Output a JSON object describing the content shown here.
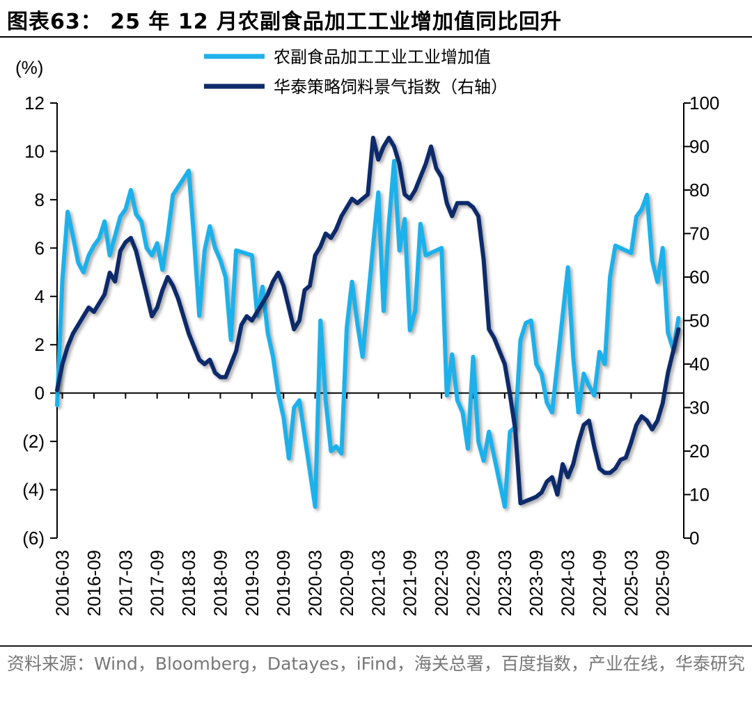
{
  "title": "图表63：  25 年 12 月农副食品加工工业增加值同比回升",
  "source": "资料来源：Wind，Bloomberg，Datayes，iFind，海关总署，百度指数，产业在线，华泰研究",
  "colors": {
    "series1": "#1fb1eb",
    "series2": "#0e2a6b",
    "axis": "#000000"
  },
  "chart_data": {
    "type": "line",
    "y_left_label": "(%)",
    "y_left_range": [
      -6,
      12
    ],
    "y_left_ticks": [
      "12",
      "10",
      "8",
      "6",
      "4",
      "2",
      "0",
      "(2)",
      "(4)",
      "(6)"
    ],
    "y_right_range": [
      0,
      100
    ],
    "y_right_ticks": [
      "100",
      "90",
      "80",
      "70",
      "60",
      "50",
      "40",
      "30",
      "20",
      "10",
      "0"
    ],
    "x_tick_labels": [
      "2016-03",
      "2016-09",
      "2017-03",
      "2017-09",
      "2018-03",
      "2018-09",
      "2019-03",
      "2019-09",
      "2020-03",
      "2020-09",
      "2021-03",
      "2021-09",
      "2022-03",
      "2022-09",
      "2023-03",
      "2023-09",
      "2024-03",
      "2024-09",
      "2025-03",
      "2025-09"
    ],
    "series": [
      {
        "name": "农副食品加工工业工业增加值",
        "axis": "left",
        "points": [
          [
            "2016-02",
            -0.5
          ],
          [
            "2016-03",
            4.7
          ],
          [
            "2016-04",
            7.5
          ],
          [
            "2016-05",
            6.5
          ],
          [
            "2016-06",
            5.4
          ],
          [
            "2016-07",
            5.0
          ],
          [
            "2016-08",
            5.7
          ],
          [
            "2016-09",
            6.1
          ],
          [
            "2016-10",
            6.4
          ],
          [
            "2016-11",
            7.1
          ],
          [
            "2016-12",
            5.7
          ],
          [
            "2017-02",
            7.3
          ],
          [
            "2017-03",
            7.6
          ],
          [
            "2017-04",
            8.4
          ],
          [
            "2017-05",
            7.4
          ],
          [
            "2017-06",
            7.1
          ],
          [
            "2017-07",
            6.0
          ],
          [
            "2017-08",
            5.7
          ],
          [
            "2017-09",
            6.2
          ],
          [
            "2017-10",
            5.1
          ],
          [
            "2017-11",
            6.5
          ],
          [
            "2017-12",
            8.2
          ],
          [
            "2018-03",
            9.2
          ],
          [
            "2018-04",
            6.4
          ],
          [
            "2018-05",
            3.2
          ],
          [
            "2018-06",
            5.9
          ],
          [
            "2018-07",
            6.9
          ],
          [
            "2018-08",
            6.0
          ],
          [
            "2018-09",
            5.5
          ],
          [
            "2018-10",
            4.8
          ],
          [
            "2018-11",
            2.2
          ],
          [
            "2018-12",
            5.9
          ],
          [
            "2019-03",
            5.7
          ],
          [
            "2019-04",
            3.2
          ],
          [
            "2019-05",
            4.4
          ],
          [
            "2019-06",
            2.5
          ],
          [
            "2019-07",
            1.5
          ],
          [
            "2019-08",
            0.0
          ],
          [
            "2019-09",
            -1.0
          ],
          [
            "2019-10",
            -2.7
          ],
          [
            "2019-11",
            -0.6
          ],
          [
            "2019-12",
            -0.3
          ],
          [
            "2020-03",
            -4.7
          ],
          [
            "2020-04",
            3.0
          ],
          [
            "2020-05",
            -0.3
          ],
          [
            "2020-06",
            -2.4
          ],
          [
            "2020-07",
            -2.2
          ],
          [
            "2020-08",
            -2.5
          ],
          [
            "2020-09",
            2.7
          ],
          [
            "2020-10",
            4.6
          ],
          [
            "2020-11",
            2.9
          ],
          [
            "2020-12",
            1.5
          ],
          [
            "2021-02",
            6.1
          ],
          [
            "2021-03",
            8.3
          ],
          [
            "2021-04",
            3.4
          ],
          [
            "2021-05",
            7.0
          ],
          [
            "2021-06",
            9.6
          ],
          [
            "2021-07",
            5.9
          ],
          [
            "2021-08",
            7.2
          ],
          [
            "2021-09",
            2.6
          ],
          [
            "2021-10",
            3.4
          ],
          [
            "2021-11",
            7.0
          ],
          [
            "2021-12",
            5.7
          ],
          [
            "2022-03",
            6.0
          ],
          [
            "2022-04",
            -0.1
          ],
          [
            "2022-05",
            1.6
          ],
          [
            "2022-06",
            -0.3
          ],
          [
            "2022-07",
            -0.8
          ],
          [
            "2022-08",
            -2.3
          ],
          [
            "2022-09",
            1.5
          ],
          [
            "2022-10",
            -2.0
          ],
          [
            "2022-11",
            -2.8
          ],
          [
            "2022-12",
            -1.6
          ],
          [
            "2023-03",
            -4.7
          ],
          [
            "2023-04",
            -1.6
          ],
          [
            "2023-05",
            -1.4
          ],
          [
            "2023-06",
            2.2
          ],
          [
            "2023-07",
            2.9
          ],
          [
            "2023-08",
            3.0
          ],
          [
            "2023-09",
            1.2
          ],
          [
            "2023-10",
            0.8
          ],
          [
            "2023-11",
            -0.4
          ],
          [
            "2023-12",
            -0.8
          ],
          [
            "2024-03",
            5.2
          ],
          [
            "2024-04",
            1.5
          ],
          [
            "2024-05",
            -0.8
          ],
          [
            "2024-06",
            0.8
          ],
          [
            "2024-07",
            0.3
          ],
          [
            "2024-08",
            -0.1
          ],
          [
            "2024-09",
            1.7
          ],
          [
            "2024-10",
            1.2
          ],
          [
            "2024-11",
            4.8
          ],
          [
            "2024-12",
            6.1
          ],
          [
            "2025-03",
            5.8
          ],
          [
            "2025-04",
            7.3
          ],
          [
            "2025-05",
            7.6
          ],
          [
            "2025-06",
            8.2
          ],
          [
            "2025-07",
            5.5
          ],
          [
            "2025-08",
            4.6
          ],
          [
            "2025-09",
            6.0
          ],
          [
            "2025-10",
            2.5
          ],
          [
            "2025-11",
            1.8
          ],
          [
            "2025-12",
            3.1
          ]
        ]
      },
      {
        "name": "华泰策略饲料景气指数（右轴）",
        "axis": "right",
        "points": [
          [
            "2016-02",
            34
          ],
          [
            "2016-03",
            40
          ],
          [
            "2016-04",
            44
          ],
          [
            "2016-05",
            47
          ],
          [
            "2016-06",
            49
          ],
          [
            "2016-07",
            51
          ],
          [
            "2016-08",
            53
          ],
          [
            "2016-09",
            52
          ],
          [
            "2016-10",
            54
          ],
          [
            "2016-11",
            56
          ],
          [
            "2016-12",
            61
          ],
          [
            "2017-01",
            59
          ],
          [
            "2017-02",
            66
          ],
          [
            "2017-03",
            68
          ],
          [
            "2017-04",
            69
          ],
          [
            "2017-05",
            66
          ],
          [
            "2017-06",
            61
          ],
          [
            "2017-07",
            56
          ],
          [
            "2017-08",
            51
          ],
          [
            "2017-09",
            53
          ],
          [
            "2017-10",
            57
          ],
          [
            "2017-11",
            60
          ],
          [
            "2017-12",
            58
          ],
          [
            "2018-01",
            55
          ],
          [
            "2018-02",
            51
          ],
          [
            "2018-03",
            47
          ],
          [
            "2018-04",
            44
          ],
          [
            "2018-05",
            41
          ],
          [
            "2018-06",
            40
          ],
          [
            "2018-07",
            41
          ],
          [
            "2018-08",
            38
          ],
          [
            "2018-09",
            37
          ],
          [
            "2018-10",
            37
          ],
          [
            "2018-11",
            40
          ],
          [
            "2018-12",
            43
          ],
          [
            "2019-01",
            49
          ],
          [
            "2019-02",
            51
          ],
          [
            "2019-03",
            50
          ],
          [
            "2019-04",
            52
          ],
          [
            "2019-05",
            54
          ],
          [
            "2019-06",
            56
          ],
          [
            "2019-07",
            59
          ],
          [
            "2019-08",
            61
          ],
          [
            "2019-09",
            58
          ],
          [
            "2019-10",
            53
          ],
          [
            "2019-11",
            48
          ],
          [
            "2019-12",
            50
          ],
          [
            "2020-01",
            57
          ],
          [
            "2020-02",
            58
          ],
          [
            "2020-03",
            65
          ],
          [
            "2020-04",
            67
          ],
          [
            "2020-05",
            70
          ],
          [
            "2020-06",
            69
          ],
          [
            "2020-07",
            71
          ],
          [
            "2020-08",
            74
          ],
          [
            "2020-09",
            76
          ],
          [
            "2020-10",
            78
          ],
          [
            "2020-11",
            77
          ],
          [
            "2020-12",
            78
          ],
          [
            "2021-01",
            79
          ],
          [
            "2021-02",
            92
          ],
          [
            "2021-03",
            87
          ],
          [
            "2021-04",
            90
          ],
          [
            "2021-05",
            92
          ],
          [
            "2021-06",
            90
          ],
          [
            "2021-07",
            86
          ],
          [
            "2021-08",
            79
          ],
          [
            "2021-09",
            78
          ],
          [
            "2021-10",
            80
          ],
          [
            "2021-11",
            83
          ],
          [
            "2021-12",
            86
          ],
          [
            "2022-01",
            90
          ],
          [
            "2022-02",
            85
          ],
          [
            "2022-03",
            83
          ],
          [
            "2022-04",
            77
          ],
          [
            "2022-05",
            74
          ],
          [
            "2022-06",
            77
          ],
          [
            "2022-07",
            77
          ],
          [
            "2022-08",
            77
          ],
          [
            "2022-09",
            76
          ],
          [
            "2022-10",
            74
          ],
          [
            "2022-11",
            64
          ],
          [
            "2022-12",
            48
          ],
          [
            "2023-01",
            46
          ],
          [
            "2023-02",
            43
          ],
          [
            "2023-03",
            40
          ],
          [
            "2023-04",
            33
          ],
          [
            "2023-05",
            25
          ],
          [
            "2023-06",
            8
          ],
          [
            "2023-07",
            8.5
          ],
          [
            "2023-08",
            9
          ],
          [
            "2023-09",
            9.5
          ],
          [
            "2023-10",
            10.5
          ],
          [
            "2023-11",
            13
          ],
          [
            "2023-12",
            14
          ],
          [
            "2024-01",
            10
          ],
          [
            "2024-02",
            17
          ],
          [
            "2024-03",
            14
          ],
          [
            "2024-04",
            17
          ],
          [
            "2024-05",
            22
          ],
          [
            "2024-06",
            26
          ],
          [
            "2024-07",
            27
          ],
          [
            "2024-08",
            21
          ],
          [
            "2024-09",
            16
          ],
          [
            "2024-10",
            15
          ],
          [
            "2024-11",
            15
          ],
          [
            "2024-12",
            16
          ],
          [
            "2025-01",
            18
          ],
          [
            "2025-02",
            18.5
          ],
          [
            "2025-03",
            22
          ],
          [
            "2025-04",
            26
          ],
          [
            "2025-05",
            28
          ],
          [
            "2025-06",
            27
          ],
          [
            "2025-07",
            25
          ],
          [
            "2025-08",
            27
          ],
          [
            "2025-09",
            31
          ],
          [
            "2025-10",
            38
          ],
          [
            "2025-11",
            43
          ],
          [
            "2025-12",
            48
          ]
        ]
      }
    ]
  }
}
